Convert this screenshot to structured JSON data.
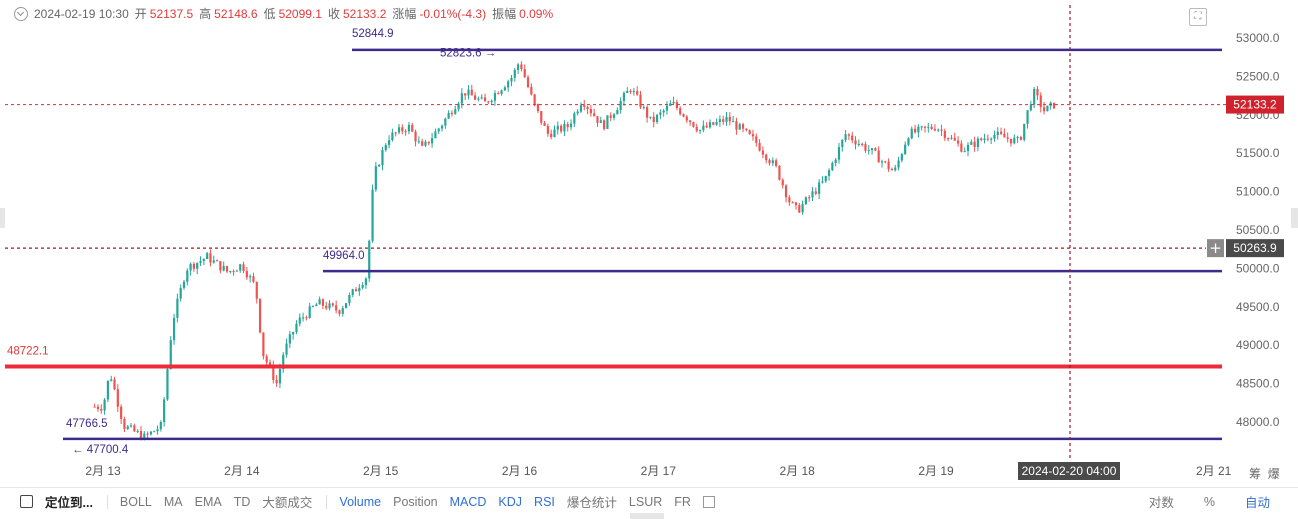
{
  "header": {
    "datetime": "2024-02-19 10:30",
    "open_label": "开",
    "open": "52137.5",
    "high_label": "高",
    "high": "52148.6",
    "low_label": "低",
    "low": "52099.1",
    "close_label": "收",
    "close": "52133.2",
    "change_label": "涨幅",
    "change": "-0.01%(-4.3)",
    "amp_label": "振幅",
    "amp": "0.09%"
  },
  "chart_data": {
    "type": "candlestick",
    "x_ticks": [
      "2月 13",
      "2月 14",
      "2月 15",
      "2月 16",
      "2月 17",
      "2月 18",
      "2月 19",
      "2月 21"
    ],
    "y_ticks": [
      "53000.0",
      "52500.0",
      "52000.0",
      "51500.0",
      "51000.0",
      "50500.0",
      "50000.0",
      "49500.0",
      "49000.0",
      "48500.0",
      "48000.0"
    ],
    "ylim": [
      47700,
      53200
    ],
    "current_price": "52133.2",
    "crosshair_price": "50263.9",
    "crosshair_time": "2024-02-20 04:00",
    "horizontal_lines": [
      {
        "label": "52844.9",
        "value": 52844.9,
        "color": "#3d2a8a"
      },
      {
        "label": "49964.0",
        "value": 49964.0,
        "color": "#3d2a8a"
      },
      {
        "label": "48722.1",
        "value": 48722.1,
        "color": "#ef2b3a"
      },
      {
        "label": "",
        "value": 47780,
        "color": "#3d2a8a"
      }
    ],
    "annotations": [
      {
        "text": "52823.6 →",
        "value": 52823.6
      },
      {
        "text": "47766.5",
        "value": 47766.5
      },
      {
        "text": "← 47700.4",
        "value": 47700.4
      }
    ],
    "price_path": [
      [
        13.0,
        48200
      ],
      [
        13.05,
        48650
      ],
      [
        13.15,
        47950
      ],
      [
        13.3,
        47800
      ],
      [
        13.42,
        47950
      ],
      [
        13.5,
        49300
      ],
      [
        13.6,
        50000
      ],
      [
        13.75,
        50150
      ],
      [
        13.9,
        49950
      ],
      [
        14.0,
        50050
      ],
      [
        14.1,
        49750
      ],
      [
        14.15,
        48900
      ],
      [
        14.25,
        48500
      ],
      [
        14.3,
        48900
      ],
      [
        14.4,
        49300
      ],
      [
        14.55,
        49550
      ],
      [
        14.7,
        49450
      ],
      [
        14.85,
        49800
      ],
      [
        14.9,
        49900
      ],
      [
        14.95,
        51200
      ],
      [
        15.05,
        51700
      ],
      [
        15.2,
        51850
      ],
      [
        15.3,
        51550
      ],
      [
        15.45,
        51900
      ],
      [
        15.6,
        52300
      ],
      [
        15.75,
        52150
      ],
      [
        15.95,
        52500
      ],
      [
        16.0,
        52700
      ],
      [
        16.1,
        52150
      ],
      [
        16.2,
        51750
      ],
      [
        16.35,
        51850
      ],
      [
        16.45,
        52200
      ],
      [
        16.6,
        51850
      ],
      [
        16.8,
        52350
      ],
      [
        16.95,
        51900
      ],
      [
        17.1,
        52150
      ],
      [
        17.3,
        51800
      ],
      [
        17.5,
        51950
      ],
      [
        17.7,
        51650
      ],
      [
        17.85,
        51300
      ],
      [
        17.95,
        50850
      ],
      [
        18.0,
        50750
      ],
      [
        18.2,
        51150
      ],
      [
        18.35,
        51750
      ],
      [
        18.55,
        51500
      ],
      [
        18.7,
        51250
      ],
      [
        18.8,
        51750
      ],
      [
        19.0,
        51850
      ],
      [
        19.2,
        51550
      ],
      [
        19.4,
        51750
      ],
      [
        19.6,
        51650
      ],
      [
        19.7,
        52300
      ],
      [
        19.78,
        52050
      ],
      [
        19.85,
        52133
      ]
    ]
  },
  "toolbar": {
    "locate": "定位到...",
    "items_gray": [
      "BOLL",
      "MA",
      "EMA",
      "TD",
      "大额成交"
    ],
    "items_blue": [
      "Volume"
    ],
    "items_mixed": [
      {
        "t": "Position",
        "c": "gray"
      },
      {
        "t": "MACD",
        "c": "blue"
      },
      {
        "t": "KDJ",
        "c": "blue"
      },
      {
        "t": "RSI",
        "c": "blue"
      },
      {
        "t": "爆仓统计",
        "c": "gray"
      },
      {
        "t": "LSUR",
        "c": "gray"
      },
      {
        "t": "FR",
        "c": "gray"
      }
    ],
    "log_label": "对数",
    "pct_label": "%",
    "auto_label": "自动"
  },
  "corner": {
    "a": "筹",
    "b": "爆"
  }
}
